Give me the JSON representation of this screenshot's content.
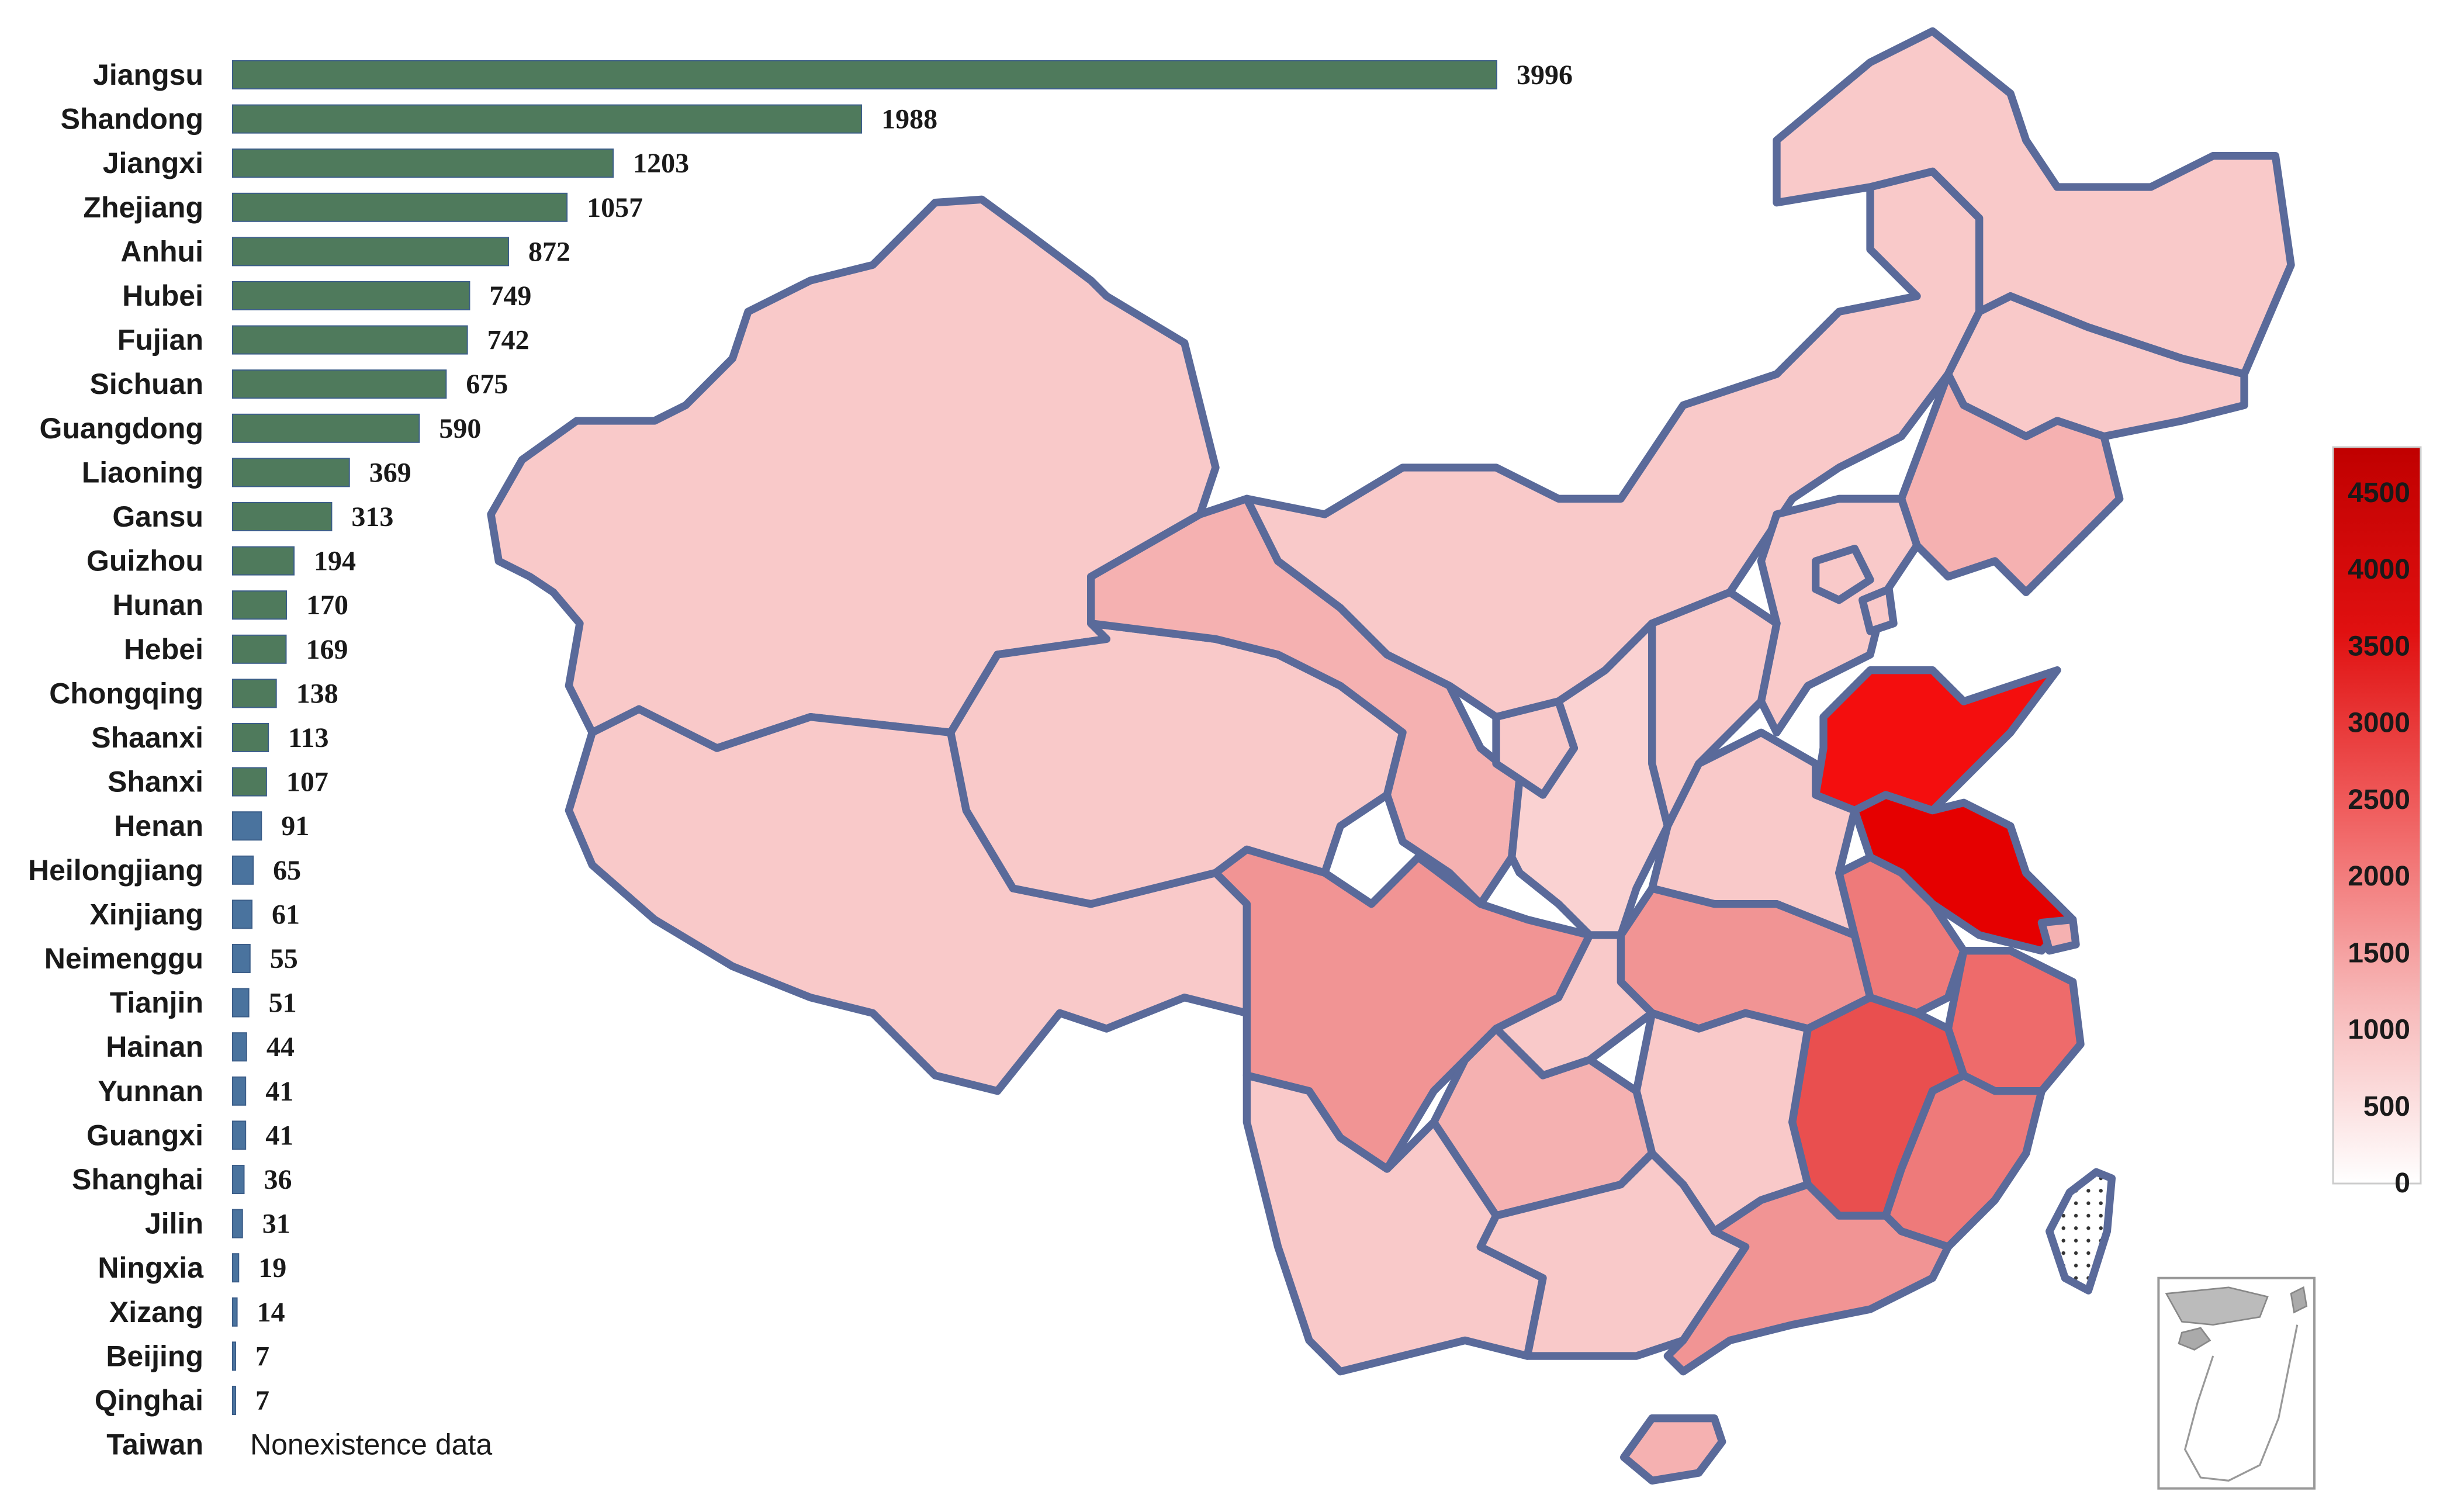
{
  "chart_data": {
    "type": "bar",
    "orientation": "horizontal",
    "categories": [
      "Jiangsu",
      "Shandong",
      "Jiangxi",
      "Zhejiang",
      "Anhui",
      "Hubei",
      "Fujian",
      "Sichuan",
      "Guangdong",
      "Liaoning",
      "Gansu",
      "Guizhou",
      "Hunan",
      "Hebei",
      "Chongqing",
      "Shaanxi",
      "Shanxi",
      "Henan",
      "Heilongjiang",
      "Xinjiang",
      "Neimenggu",
      "Tianjin",
      "Hainan",
      "Yunnan",
      "Guangxi",
      "Shanghai",
      "Jilin",
      "Ningxia",
      "Xizang",
      "Beijing",
      "Qinghai",
      "Taiwan"
    ],
    "values": [
      3996,
      1988,
      1203,
      1057,
      872,
      749,
      742,
      675,
      590,
      369,
      313,
      194,
      170,
      169,
      138,
      113,
      107,
      91,
      65,
      61,
      55,
      51,
      44,
      41,
      41,
      36,
      31,
      19,
      14,
      7,
      7,
      null
    ],
    "value_labels": [
      "3996",
      "1988",
      "1203",
      "1057",
      "872",
      "749",
      "742",
      "675",
      "590",
      "369",
      "313",
      "194",
      "170",
      "169",
      "138",
      "113",
      "107",
      "91",
      "65",
      "61",
      "55",
      "51",
      "44",
      "41",
      "41",
      "36",
      "31",
      "19",
      "14",
      "7",
      "7",
      "Nonexistence data"
    ],
    "xlim": [
      0,
      3996
    ],
    "bar_colors": {
      "high": "#4f7a5c",
      "low": "#4a739e"
    },
    "grid": false,
    "legend": {
      "placement": "right",
      "ticks": [
        "4500",
        "4000",
        "3500",
        "3000",
        "2500",
        "2000",
        "1500",
        "1000",
        "500",
        "0"
      ],
      "range": [
        0,
        4800
      ],
      "colors": [
        "#ffffff",
        "#f7b7b7",
        "#f06060",
        "#e01010",
        "#c00000"
      ]
    }
  },
  "map": {
    "colors": {
      "very_light": "#f9c9c9",
      "light": "#f8c3c3",
      "medium_light": "#f5b1b1",
      "medium": "#f19494",
      "medium_dark": "#ee7a7a",
      "dark": "#e94f4f",
      "shandong": "#f40e0e",
      "jiangsu": "#e50000",
      "border": "#5a6a9a"
    },
    "icons": {
      "taiwan": "dotted-island-icon",
      "inset": "south-china-sea-inset-icon"
    }
  }
}
